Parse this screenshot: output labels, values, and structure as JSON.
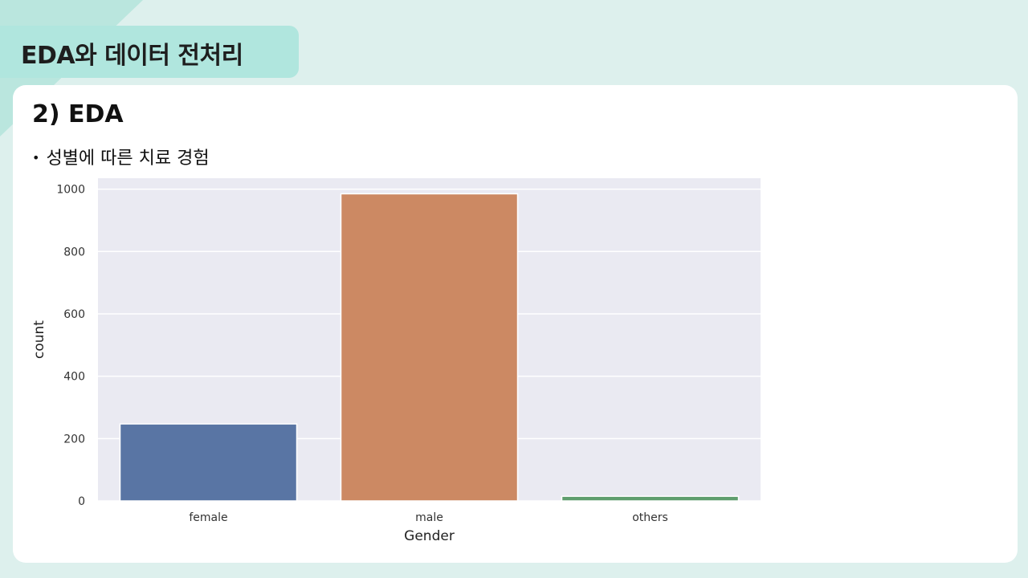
{
  "header": {
    "title": "EDA와 데이터 전처리"
  },
  "section": {
    "title": "2) EDA",
    "bullet": "성별에 따른 치료 경험"
  },
  "colors": {
    "background": "#ddf0ed",
    "tab": "#b0e6de",
    "plot_bg": "#eaeaf2",
    "grid": "#ffffff"
  },
  "chart_data": {
    "type": "bar",
    "categories": [
      "female",
      "male",
      "others"
    ],
    "values": [
      247,
      985,
      15
    ],
    "colors": [
      "#5975a4",
      "#cc8963",
      "#5f9e6e"
    ],
    "xlabel": "Gender",
    "ylabel": "count",
    "ylim": [
      0,
      1035
    ],
    "yticks": [
      0,
      200,
      400,
      600,
      800,
      1000
    ],
    "grid": true
  }
}
